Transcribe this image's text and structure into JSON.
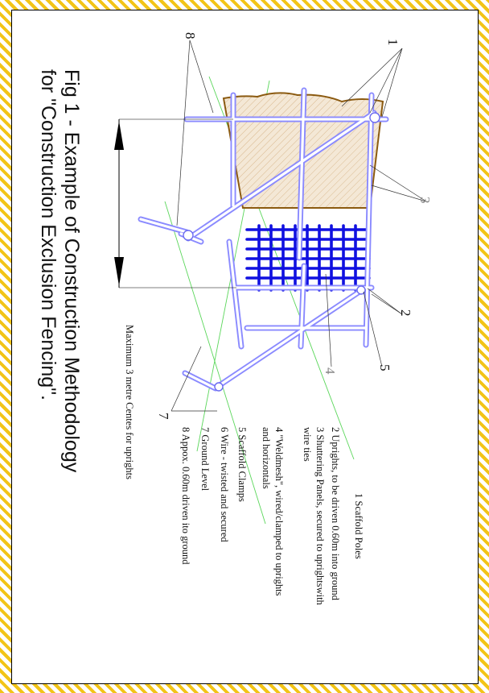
{
  "figure": {
    "caption_line1": "Fig 1 - Example of Construction Methodology",
    "caption_line2": "for \"Construction Exclusion Fencing\".",
    "dimension_label": "Maximum 3 metre Centes for uprights",
    "callouts": {
      "c1": "1",
      "c2": "2",
      "c3": "3",
      "c4": "4",
      "c5": "5",
      "c7": "7",
      "c8": "8"
    },
    "legend": [
      {
        "line1": "1 Scaffold Poles",
        "line2": ""
      },
      {
        "line1": "2 Uprights, to be driven 0.60m into ground",
        "line2": ""
      },
      {
        "line1": "3 Shuttering Panels, secured to uprightswith",
        "line2": "wire ties"
      },
      {
        "line1": "4 \"Weldmesh\", wired/clamped to uprights",
        "line2": "and horizontals"
      },
      {
        "line1": "5 Scaffold Clamps",
        "line2": ""
      },
      {
        "line1": "6 Wire - twisted and secured",
        "line2": ""
      },
      {
        "line1": "7 Ground Level",
        "line2": ""
      },
      {
        "line1": "8 Appox. 0.60m driven ito ground",
        "line2": ""
      }
    ]
  },
  "colors": {
    "pole": "#8a8aff",
    "mesh": "#1010e0",
    "panel_outline": "#8b5a10",
    "panel_fill": "#f4e8d6",
    "ground": "#5ad65a",
    "border_hatch": "#f2c417"
  }
}
